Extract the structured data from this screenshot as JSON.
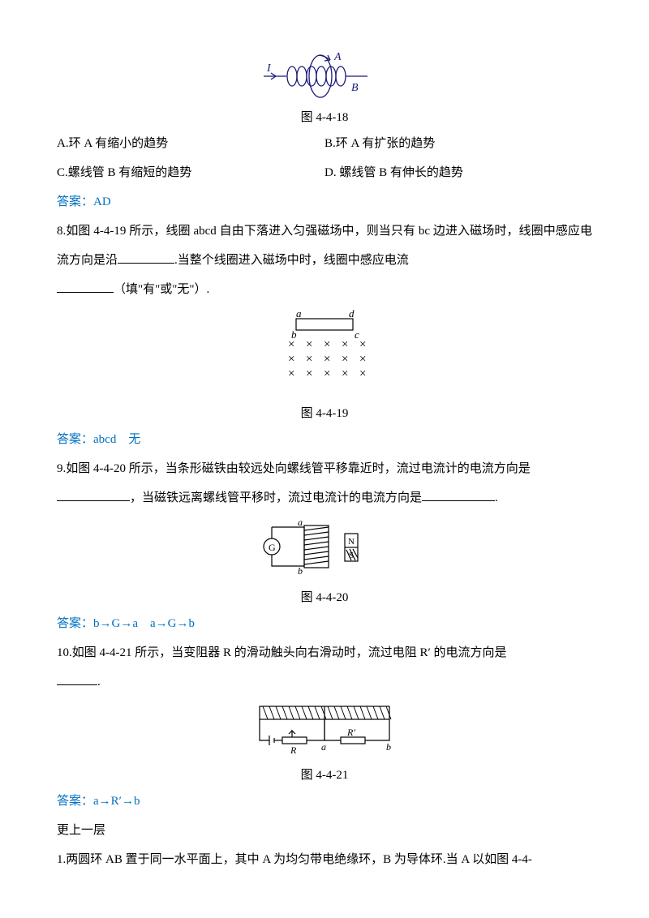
{
  "fig18": {
    "caption": "图 4-4-18",
    "label_I": "I",
    "label_A": "A",
    "label_B": "B",
    "stroke": "#1a1a7a",
    "text_color": "#1a1a7a"
  },
  "q7": {
    "opts": {
      "A": "A.环 A 有缩小的趋势",
      "B": "B.环 A 有扩张的趋势",
      "C": "C.螺线管 B 有缩短的趋势",
      "D": "D. 螺线管 B 有伸长的趋势"
    },
    "answer_label": "答案：AD"
  },
  "q8": {
    "text_pre": "8.如图 4-4-19 所示，线圈 abcd 自由下落进入匀强磁场中，则当只有 bc 边进入磁场时，线圈中感应电流方向是沿",
    "text_mid": ".当整个线圈进入磁场中时，线圈中感应电流",
    "text_post": "（填\"有\"或\"无\"）.",
    "answer_label": "答案：abcd　无"
  },
  "fig19": {
    "caption": "图 4-4-19",
    "label_a": "a",
    "label_b": "b",
    "label_c": "c",
    "label_d": "d",
    "rows": 3,
    "cols": 5,
    "x_symbol": "×",
    "stroke": "#000000"
  },
  "q9": {
    "text_pre": "9.如图 4-4-20 所示，当条形磁铁由较远处向螺线管平移靠近时，流过电流计的电流方向是",
    "text_mid": "，当磁铁远离螺线管平移时，流过电流计的电流方向是",
    "text_post": ".",
    "answer_label": "答案：b→G→a　a→G→b"
  },
  "fig20": {
    "caption": "图 4-4-20",
    "label_a": "a",
    "label_b": "b",
    "label_G": "G",
    "label_N": "N",
    "label_S": "S",
    "stroke": "#000000"
  },
  "q10": {
    "text_pre": "10.如图 4-4-21 所示，当变阻器 R 的滑动触头向右滑动时，流过电阻 R′ 的电流方向是",
    "text_post": ".",
    "answer_label": "答案：a→R′→b"
  },
  "fig21": {
    "caption": "图 4-4-21",
    "label_R": "R",
    "label_Rp": "R′",
    "label_a": "a",
    "label_b": "b",
    "stroke": "#000000"
  },
  "more": {
    "heading": "更上一层",
    "q1_text": "1.两圆环 AB 置于同一水平面上，其中 A 为均匀带电绝缘环，B 为导体环.当 A 以如图 4-4-"
  }
}
